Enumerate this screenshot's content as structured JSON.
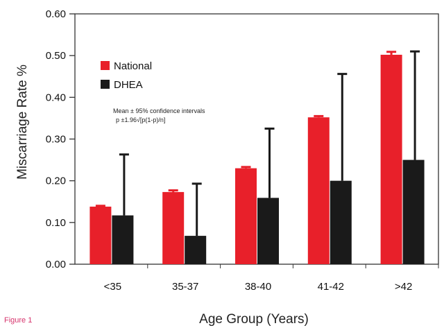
{
  "chart_data": {
    "type": "bar",
    "xlabel": "Age Group (Years)",
    "ylabel": "Miscarriage Rate %",
    "ylim": [
      0,
      0.6
    ],
    "yticks": [
      "0.00",
      "0.10",
      "0.20",
      "0.30",
      "0.40",
      "0.50",
      "0.60"
    ],
    "categories": [
      "<35",
      "35-37",
      "38-40",
      "41-42",
      ">42"
    ],
    "series": [
      {
        "name": "National",
        "color": "#e8202a",
        "values": [
          0.138,
          0.173,
          0.23,
          0.352,
          0.502
        ],
        "error_upper": [
          0.14,
          0.177,
          0.233,
          0.355,
          0.509
        ]
      },
      {
        "name": "DHEA",
        "color": "#1a1a1a",
        "values": [
          0.117,
          0.068,
          0.159,
          0.2,
          0.25
        ],
        "error_upper": [
          0.263,
          0.193,
          0.325,
          0.456,
          0.51
        ]
      }
    ],
    "annotation_line1": "Mean ± 95% confidence intervals",
    "annotation_line2": "p ±1.96√[p(1-p)/n]",
    "legend_position": "top-left",
    "grid": false
  },
  "figure_label": "Figure 1"
}
